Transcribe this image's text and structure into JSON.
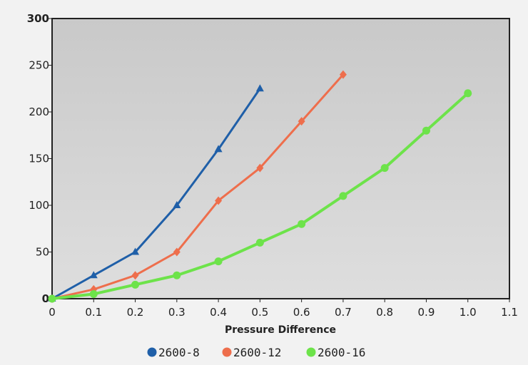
{
  "chart_data": {
    "type": "line",
    "title": "",
    "xlabel": "Pressure Difference",
    "ylabel": "",
    "xlim": [
      0,
      1.1
    ],
    "ylim": [
      0,
      300
    ],
    "xticks": [
      "0",
      "0.1",
      "0.2",
      "0.3",
      "0.4",
      "0.5",
      "0.6",
      "0.7",
      "0.8",
      "0.9",
      "1.0",
      "1.1"
    ],
    "yticks": [
      "0",
      "50",
      "100",
      "150",
      "200",
      "250",
      "300"
    ],
    "grid": false,
    "legend_position": "bottom",
    "series": [
      {
        "name": "2600-8",
        "color": "#1f5fa8",
        "marker": "triangle",
        "x": [
          0,
          0.1,
          0.2,
          0.3,
          0.4,
          0.5
        ],
        "y": [
          0,
          25,
          50,
          100,
          160,
          225
        ]
      },
      {
        "name": "2600-12",
        "color": "#ee6e4c",
        "marker": "diamond",
        "x": [
          0,
          0.1,
          0.2,
          0.3,
          0.4,
          0.5,
          0.6,
          0.7
        ],
        "y": [
          0,
          10,
          25,
          50,
          105,
          140,
          190,
          240
        ]
      },
      {
        "name": "2600-16",
        "color": "#6de34a",
        "marker": "circle",
        "x": [
          0,
          0.1,
          0.2,
          0.3,
          0.4,
          0.5,
          0.6,
          0.7,
          0.8,
          0.9,
          1.0
        ],
        "y": [
          0,
          5,
          15,
          25,
          40,
          60,
          80,
          110,
          140,
          180,
          220
        ]
      }
    ]
  }
}
